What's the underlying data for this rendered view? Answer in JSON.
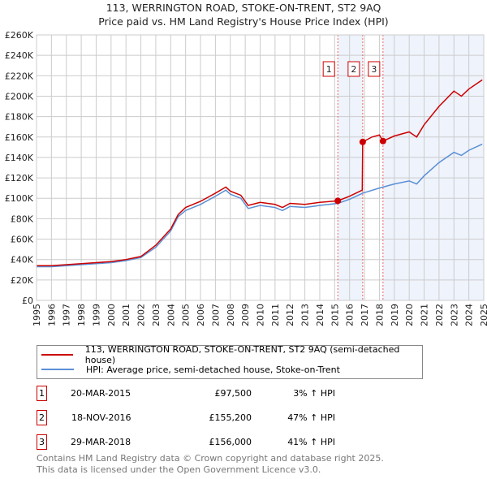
{
  "chart_data": {
    "type": "line",
    "title": "113, WERRINGTON ROAD, STOKE-ON-TRENT, ST2 9AQ",
    "subtitle": "Price paid vs. HM Land Registry's House Price Index (HPI)",
    "xlim": [
      1995,
      2025
    ],
    "ylim": [
      0,
      260000
    ],
    "x_ticks": [
      "1995",
      "1996",
      "1997",
      "1998",
      "1999",
      "2000",
      "2001",
      "2002",
      "2003",
      "2004",
      "2005",
      "2006",
      "2007",
      "2008",
      "2009",
      "2010",
      "2011",
      "2012",
      "2013",
      "2014",
      "2015",
      "2016",
      "2017",
      "2018",
      "2019",
      "2020",
      "2021",
      "2022",
      "2023",
      "2024",
      "2025"
    ],
    "y_ticks": [
      "£0",
      "£20K",
      "£40K",
      "£60K",
      "£80K",
      "£100K",
      "£120K",
      "£140K",
      "£160K",
      "£180K",
      "£200K",
      "£220K",
      "£240K",
      "£260K"
    ],
    "grid": true,
    "series": [
      {
        "name": "113, WERRINGTON ROAD, STOKE-ON-TRENT, ST2 9AQ (semi-detached house)",
        "color": "#cc0000",
        "points": [
          [
            1995,
            34
          ],
          [
            1996,
            34
          ],
          [
            1997,
            35
          ],
          [
            1998,
            36
          ],
          [
            1999,
            37
          ],
          [
            2000,
            38
          ],
          [
            2001,
            40
          ],
          [
            2002,
            43
          ],
          [
            2003,
            54
          ],
          [
            2004,
            70
          ],
          [
            2004.5,
            84
          ],
          [
            2005,
            91
          ],
          [
            2006,
            97
          ],
          [
            2007,
            105
          ],
          [
            2007.7,
            111
          ],
          [
            2008,
            107
          ],
          [
            2008.7,
            103
          ],
          [
            2009.2,
            93
          ],
          [
            2010,
            96
          ],
          [
            2011,
            94
          ],
          [
            2011.5,
            91
          ],
          [
            2012,
            95
          ],
          [
            2013,
            94
          ],
          [
            2014,
            96
          ],
          [
            2015.21,
            97.5
          ],
          [
            2016,
            102
          ],
          [
            2016.85,
            108
          ],
          [
            2016.88,
            155.2
          ],
          [
            2017.5,
            160
          ],
          [
            2018,
            162
          ],
          [
            2018.24,
            156
          ],
          [
            2019,
            161
          ],
          [
            2020,
            165
          ],
          [
            2020.5,
            160
          ],
          [
            2021,
            172
          ],
          [
            2022,
            190
          ],
          [
            2023,
            205
          ],
          [
            2023.5,
            200
          ],
          [
            2024,
            207
          ],
          [
            2024.9,
            216
          ]
        ]
      },
      {
        "name": "HPI: Average price, semi-detached house, Stoke-on-Trent",
        "color": "#5b8fd6",
        "points": [
          [
            1995,
            33
          ],
          [
            1996,
            33
          ],
          [
            1997,
            34
          ],
          [
            1998,
            35
          ],
          [
            1999,
            36
          ],
          [
            2000,
            37
          ],
          [
            2001,
            39
          ],
          [
            2002,
            42
          ],
          [
            2003,
            52
          ],
          [
            2004,
            68
          ],
          [
            2004.5,
            82
          ],
          [
            2005,
            88
          ],
          [
            2006,
            94
          ],
          [
            2007,
            102
          ],
          [
            2007.7,
            108
          ],
          [
            2008,
            104
          ],
          [
            2008.7,
            100
          ],
          [
            2009.2,
            90
          ],
          [
            2010,
            93
          ],
          [
            2011,
            91
          ],
          [
            2011.5,
            88
          ],
          [
            2012,
            92
          ],
          [
            2013,
            91
          ],
          [
            2014,
            93
          ],
          [
            2015.21,
            95
          ],
          [
            2016,
            99
          ],
          [
            2016.88,
            105
          ],
          [
            2018,
            110
          ],
          [
            2019,
            114
          ],
          [
            2020,
            117
          ],
          [
            2020.5,
            114
          ],
          [
            2021,
            122
          ],
          [
            2022,
            135
          ],
          [
            2023,
            145
          ],
          [
            2023.5,
            142
          ],
          [
            2024,
            147
          ],
          [
            2024.9,
            153
          ]
        ]
      }
    ],
    "sales": [
      {
        "label": "1",
        "x": 2015.21,
        "value": 97500,
        "date": "20-MAR-2015",
        "price": "£97,500",
        "hpi": "3% ↑ HPI"
      },
      {
        "label": "2",
        "x": 2016.88,
        "value": 155200,
        "date": "18-NOV-2016",
        "price": "£155,200",
        "hpi": "47% ↑ HPI"
      },
      {
        "label": "3",
        "x": 2018.24,
        "value": 156000,
        "date": "29-MAR-2018",
        "price": "£156,000",
        "hpi": "41% ↑ HPI"
      }
    ]
  },
  "footer": [
    "Contains HM Land Registry data © Crown copyright and database right 2025.",
    "This data is licensed under the Open Government Licence v3.0."
  ]
}
